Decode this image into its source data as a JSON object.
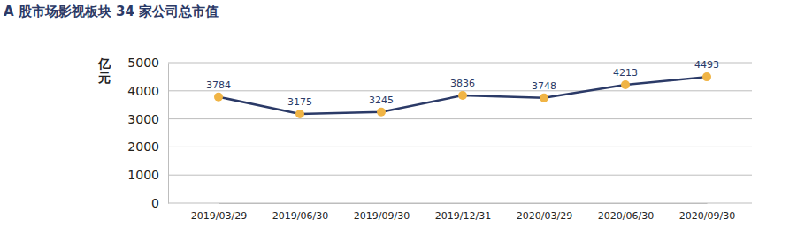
{
  "chart_data": {
    "type": "line",
    "title": "A 股市场影视板块 34 家公司总市值",
    "y_label": "亿元",
    "categories": [
      "2019/03/29",
      "2019/06/30",
      "2019/09/30",
      "2019/12/31",
      "2020/03/29",
      "2020/06/30",
      "2020/09/30"
    ],
    "series": [
      {
        "name": "总市值",
        "color": "#2b3a67",
        "values": [
          3784,
          3175,
          3245,
          3836,
          3748,
          4213,
          4493
        ]
      }
    ],
    "marker": "circle",
    "marker_color": "#f0b445",
    "ylim": [
      0,
      5000
    ],
    "yticks": [
      0,
      1000,
      2000,
      3000,
      4000,
      5000
    ],
    "grid": true,
    "data_labels": true
  }
}
